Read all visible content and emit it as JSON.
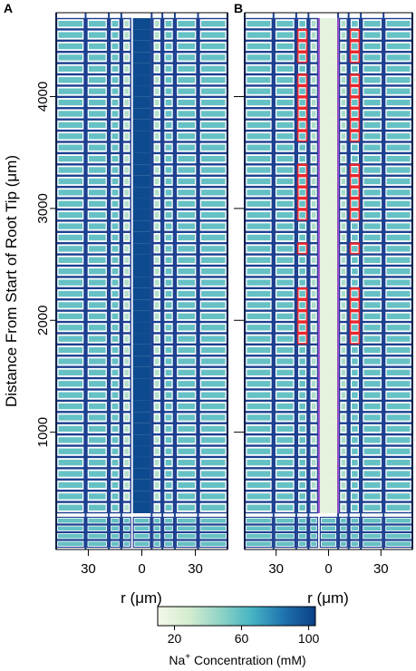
{
  "chart_data": {
    "type": "heatmap",
    "panels": [
      {
        "label": "A",
        "xlabel": "r (μm)",
        "x_tick_labels": [
          "30",
          "0",
          "30"
        ],
        "x_tick_values": [
          -30,
          0,
          30
        ],
        "xlim": [
          -48,
          48
        ],
        "center_column_na_mM": 100,
        "outer_columns_na_mM": 58,
        "thin_strip_na_mM": 38
      },
      {
        "label": "B",
        "xlabel": "r (μm)",
        "x_tick_labels": [
          "30",
          "0",
          "30"
        ],
        "x_tick_values": [
          -30,
          0,
          30
        ],
        "xlim": [
          -48,
          48
        ],
        "center_column_na_mM": 18,
        "inner_columns_na_mM": 40,
        "outer_columns_na_mM": 58,
        "highlighted_cells": {
          "color": "#e8262c",
          "y_ranges_um": [
            [
              4250,
              4600
            ],
            [
              3600,
              4150
            ],
            [
              2850,
              3400
            ],
            [
              2550,
              2700
            ],
            [
              1750,
              2300
            ]
          ]
        },
        "vascular_boundary_color": "#9b4fc9"
      }
    ],
    "ylabel": "Distance From Start of Root Tip (μm)",
    "y_tick_labels": [
      "1000",
      "2000",
      "3000",
      "4000"
    ],
    "y_tick_values": [
      1000,
      2000,
      3000,
      4000
    ],
    "ylim": [
      0,
      4750
    ],
    "colorbar": {
      "title_prefix": "Na",
      "title_superscript": "+",
      "title_suffix": " Concentration (mM)",
      "tick_labels": [
        "20",
        "60",
        "100"
      ],
      "tick_values": [
        20,
        60,
        100
      ],
      "range": [
        10,
        104
      ],
      "colors": [
        "#f2f8e8",
        "#d4ecd0",
        "#8fd3c6",
        "#45b3c4",
        "#1f72ae",
        "#0a3f86"
      ]
    }
  }
}
